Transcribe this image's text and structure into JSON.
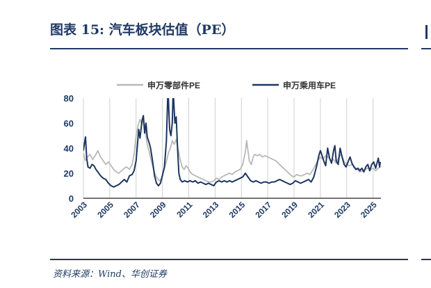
{
  "header": {
    "title": "图表 15:  汽车板块估值（PE）"
  },
  "footer": {
    "source": "资料来源：Wind、华创证券"
  },
  "chart_data": {
    "type": "line",
    "title": "",
    "xlabel": "",
    "ylabel": "",
    "xlim": [
      2003.0,
      2025.6
    ],
    "ylim": [
      0,
      80
    ],
    "yticks": [
      "0",
      "20",
      "40",
      "60",
      "80"
    ],
    "xticks": [
      "2003",
      "2005",
      "2007",
      "2009",
      "2011",
      "2013",
      "2015",
      "2017",
      "2019",
      "2021",
      "2023",
      "2025"
    ],
    "grid": "vertical",
    "legend_position": "top",
    "series": [
      {
        "name": "申万零部件PE",
        "color": "#b8b8b8",
        "points": [
          [
            2003.0,
            36
          ],
          [
            2003.15,
            30
          ],
          [
            2003.3,
            33
          ],
          [
            2003.5,
            35
          ],
          [
            2003.7,
            31
          ],
          [
            2003.9,
            34
          ],
          [
            2004.1,
            38
          ],
          [
            2004.3,
            33
          ],
          [
            2004.5,
            30
          ],
          [
            2004.7,
            27
          ],
          [
            2004.9,
            29
          ],
          [
            2005.1,
            26
          ],
          [
            2005.3,
            23
          ],
          [
            2005.5,
            21
          ],
          [
            2005.7,
            20
          ],
          [
            2005.9,
            22
          ],
          [
            2006.1,
            24
          ],
          [
            2006.3,
            25
          ],
          [
            2006.5,
            23
          ],
          [
            2006.7,
            27
          ],
          [
            2006.85,
            35
          ],
          [
            2007.0,
            50
          ],
          [
            2007.15,
            58
          ],
          [
            2007.3,
            63
          ],
          [
            2007.45,
            59
          ],
          [
            2007.55,
            64
          ],
          [
            2007.7,
            54
          ],
          [
            2007.85,
            43
          ],
          [
            2008.0,
            37
          ],
          [
            2008.15,
            30
          ],
          [
            2008.3,
            24
          ],
          [
            2008.45,
            19
          ],
          [
            2008.6,
            16
          ],
          [
            2008.75,
            14
          ],
          [
            2008.9,
            15
          ],
          [
            2009.1,
            22
          ],
          [
            2009.3,
            29
          ],
          [
            2009.45,
            36
          ],
          [
            2009.6,
            40
          ],
          [
            2009.75,
            46
          ],
          [
            2009.9,
            43
          ],
          [
            2010.05,
            47
          ],
          [
            2010.2,
            39
          ],
          [
            2010.35,
            31
          ],
          [
            2010.5,
            25
          ],
          [
            2010.65,
            23
          ],
          [
            2010.8,
            26
          ],
          [
            2010.95,
            24
          ],
          [
            2011.1,
            21
          ],
          [
            2011.3,
            19
          ],
          [
            2011.5,
            18
          ],
          [
            2011.7,
            17
          ],
          [
            2011.9,
            16
          ],
          [
            2012.1,
            15
          ],
          [
            2012.3,
            14
          ],
          [
            2012.5,
            13
          ],
          [
            2012.7,
            13
          ],
          [
            2012.9,
            14
          ],
          [
            2013.1,
            16
          ],
          [
            2013.3,
            15
          ],
          [
            2013.5,
            17
          ],
          [
            2013.7,
            18
          ],
          [
            2013.9,
            19
          ],
          [
            2014.1,
            20
          ],
          [
            2014.3,
            19
          ],
          [
            2014.5,
            21
          ],
          [
            2014.7,
            22
          ],
          [
            2014.9,
            23
          ],
          [
            2015.1,
            27
          ],
          [
            2015.3,
            37
          ],
          [
            2015.4,
            46
          ],
          [
            2015.5,
            38
          ],
          [
            2015.6,
            30
          ],
          [
            2015.75,
            27
          ],
          [
            2015.9,
            33
          ],
          [
            2016.0,
            35
          ],
          [
            2016.2,
            34
          ],
          [
            2016.4,
            35
          ],
          [
            2016.6,
            33
          ],
          [
            2016.8,
            34
          ],
          [
            2017.0,
            33
          ],
          [
            2017.2,
            32
          ],
          [
            2017.4,
            31
          ],
          [
            2017.6,
            30
          ],
          [
            2017.8,
            28
          ],
          [
            2018.0,
            26
          ],
          [
            2018.2,
            24
          ],
          [
            2018.4,
            22
          ],
          [
            2018.6,
            20
          ],
          [
            2018.8,
            18
          ],
          [
            2019.0,
            17
          ],
          [
            2019.2,
            19
          ],
          [
            2019.4,
            18
          ],
          [
            2019.6,
            18
          ],
          [
            2019.8,
            19
          ],
          [
            2020.0,
            20
          ],
          [
            2020.2,
            19
          ],
          [
            2020.4,
            22
          ],
          [
            2020.6,
            26
          ],
          [
            2020.8,
            30
          ],
          [
            2021.0,
            33
          ],
          [
            2021.2,
            31
          ],
          [
            2021.4,
            34
          ],
          [
            2021.6,
            33
          ],
          [
            2021.8,
            30
          ],
          [
            2022.0,
            31
          ],
          [
            2022.2,
            28
          ],
          [
            2022.4,
            33
          ],
          [
            2022.6,
            35
          ],
          [
            2022.8,
            29
          ],
          [
            2023.0,
            27
          ],
          [
            2023.2,
            26
          ],
          [
            2023.4,
            27
          ],
          [
            2023.6,
            25
          ],
          [
            2023.8,
            23
          ],
          [
            2024.0,
            21
          ],
          [
            2024.2,
            22
          ],
          [
            2024.4,
            23
          ],
          [
            2024.6,
            24
          ],
          [
            2024.8,
            23
          ],
          [
            2025.0,
            24
          ],
          [
            2025.2,
            22
          ],
          [
            2025.4,
            24
          ],
          [
            2025.55,
            25
          ]
        ]
      },
      {
        "name": "申万乘用车PE",
        "color": "#1c3560",
        "points": [
          [
            2003.0,
            38
          ],
          [
            2003.08,
            44
          ],
          [
            2003.16,
            49
          ],
          [
            2003.25,
            32
          ],
          [
            2003.35,
            25
          ],
          [
            2003.5,
            24
          ],
          [
            2003.65,
            27
          ],
          [
            2003.8,
            26
          ],
          [
            2003.95,
            23
          ],
          [
            2004.1,
            21
          ],
          [
            2004.3,
            18
          ],
          [
            2004.5,
            16
          ],
          [
            2004.7,
            15
          ],
          [
            2004.9,
            12
          ],
          [
            2005.1,
            10
          ],
          [
            2005.3,
            9
          ],
          [
            2005.5,
            10
          ],
          [
            2005.7,
            11
          ],
          [
            2005.9,
            13
          ],
          [
            2006.1,
            15
          ],
          [
            2006.3,
            13
          ],
          [
            2006.5,
            18
          ],
          [
            2006.7,
            19
          ],
          [
            2006.85,
            22
          ],
          [
            2007.0,
            30
          ],
          [
            2007.1,
            42
          ],
          [
            2007.2,
            55
          ],
          [
            2007.3,
            48
          ],
          [
            2007.45,
            62
          ],
          [
            2007.55,
            66
          ],
          [
            2007.65,
            52
          ],
          [
            2007.75,
            60
          ],
          [
            2007.85,
            49
          ],
          [
            2008.0,
            44
          ],
          [
            2008.1,
            40
          ],
          [
            2008.25,
            30
          ],
          [
            2008.4,
            18
          ],
          [
            2008.55,
            12
          ],
          [
            2008.7,
            10
          ],
          [
            2008.85,
            12
          ],
          [
            2009.0,
            18
          ],
          [
            2009.15,
            25
          ],
          [
            2009.3,
            45
          ],
          [
            2009.4,
            80
          ],
          [
            2009.45,
            80
          ],
          [
            2009.55,
            55
          ],
          [
            2009.65,
            50
          ],
          [
            2009.75,
            60
          ],
          [
            2009.8,
            80
          ],
          [
            2009.85,
            80
          ],
          [
            2009.95,
            60
          ],
          [
            2010.05,
            65
          ],
          [
            2010.15,
            40
          ],
          [
            2010.25,
            20
          ],
          [
            2010.35,
            15
          ],
          [
            2010.5,
            13
          ],
          [
            2010.7,
            14
          ],
          [
            2010.9,
            13
          ],
          [
            2011.1,
            14
          ],
          [
            2011.3,
            13
          ],
          [
            2011.5,
            14
          ],
          [
            2011.7,
            12
          ],
          [
            2011.9,
            13
          ],
          [
            2012.1,
            12
          ],
          [
            2012.3,
            11
          ],
          [
            2012.5,
            12
          ],
          [
            2012.7,
            11
          ],
          [
            2012.9,
            10
          ],
          [
            2013.1,
            13
          ],
          [
            2013.3,
            14
          ],
          [
            2013.5,
            13
          ],
          [
            2013.7,
            14
          ],
          [
            2013.9,
            13
          ],
          [
            2014.1,
            14
          ],
          [
            2014.3,
            13
          ],
          [
            2014.5,
            14
          ],
          [
            2014.7,
            15
          ],
          [
            2014.9,
            16
          ],
          [
            2015.1,
            17
          ],
          [
            2015.3,
            20
          ],
          [
            2015.5,
            17
          ],
          [
            2015.7,
            14
          ],
          [
            2015.9,
            13
          ],
          [
            2016.1,
            14
          ],
          [
            2016.3,
            13
          ],
          [
            2016.5,
            12
          ],
          [
            2016.7,
            13
          ],
          [
            2016.9,
            13
          ],
          [
            2017.1,
            12
          ],
          [
            2017.3,
            13
          ],
          [
            2017.5,
            13
          ],
          [
            2017.7,
            14
          ],
          [
            2017.9,
            15
          ],
          [
            2018.1,
            14
          ],
          [
            2018.3,
            13
          ],
          [
            2018.5,
            12
          ],
          [
            2018.7,
            11
          ],
          [
            2018.9,
            12
          ],
          [
            2019.1,
            14
          ],
          [
            2019.3,
            13
          ],
          [
            2019.5,
            12
          ],
          [
            2019.7,
            13
          ],
          [
            2019.9,
            14
          ],
          [
            2020.1,
            15
          ],
          [
            2020.3,
            13
          ],
          [
            2020.5,
            17
          ],
          [
            2020.7,
            25
          ],
          [
            2020.9,
            35
          ],
          [
            2021.0,
            38
          ],
          [
            2021.1,
            35
          ],
          [
            2021.25,
            30
          ],
          [
            2021.4,
            26
          ],
          [
            2021.55,
            40
          ],
          [
            2021.7,
            32
          ],
          [
            2021.85,
            28
          ],
          [
            2022.0,
            38
          ],
          [
            2022.1,
            42
          ],
          [
            2022.2,
            30
          ],
          [
            2022.35,
            27
          ],
          [
            2022.5,
            40
          ],
          [
            2022.65,
            33
          ],
          [
            2022.8,
            27
          ],
          [
            2022.95,
            25
          ],
          [
            2023.1,
            29
          ],
          [
            2023.25,
            33
          ],
          [
            2023.4,
            28
          ],
          [
            2023.55,
            25
          ],
          [
            2023.7,
            23
          ],
          [
            2023.85,
            24
          ],
          [
            2024.0,
            22
          ],
          [
            2024.15,
            24
          ],
          [
            2024.3,
            21
          ],
          [
            2024.45,
            25
          ],
          [
            2024.6,
            27
          ],
          [
            2024.75,
            22
          ],
          [
            2024.9,
            27
          ],
          [
            2025.05,
            29
          ],
          [
            2025.2,
            24
          ],
          [
            2025.3,
            28
          ],
          [
            2025.4,
            32
          ],
          [
            2025.5,
            25
          ],
          [
            2025.55,
            29
          ]
        ]
      }
    ]
  }
}
